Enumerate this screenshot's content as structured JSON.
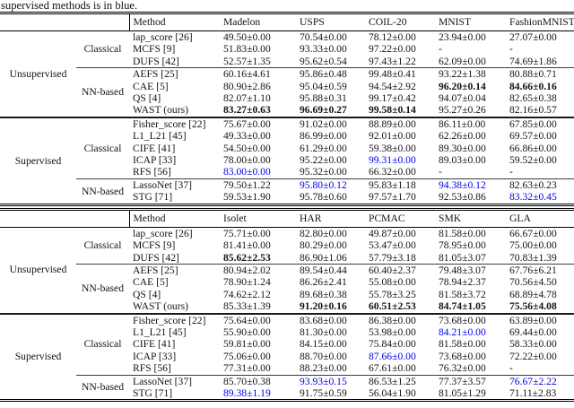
{
  "caption": "supervised methods is in blue.",
  "colors": {
    "highlight_blue": "#0000ee",
    "text": "#131313"
  },
  "tables": [
    {
      "headers": [
        "Method",
        "Madelon",
        "USPS",
        "COIL-20",
        "MNIST",
        "FashionMNIST"
      ],
      "groups": [
        {
          "label": "Unsupervised",
          "subgroups": [
            {
              "label": "Classical",
              "rows": [
                {
                  "method": "lap_score [26]",
                  "values": [
                    "49.50±0.00",
                    "70.54±0.00",
                    "78.12±0.00",
                    "23.94±0.00",
                    "27.07±0.00"
                  ]
                },
                {
                  "method": "MCFS [9]",
                  "values": [
                    "51.83±0.00",
                    "93.33±0.00",
                    "97.22±0.00",
                    "-",
                    "-"
                  ]
                },
                {
                  "method": "DUFS [42]",
                  "values": [
                    "52.57±1.35",
                    "95.62±0.54",
                    "97.43±1.22",
                    "62.09±0.00",
                    "74.69±1.86"
                  ]
                }
              ]
            },
            {
              "label": "NN-based",
              "rows": [
                {
                  "method": "AEFS [25]",
                  "values": [
                    "60.16±4.61",
                    "95.86±0.48",
                    "99.48±0.41",
                    "93.22±1.38",
                    "80.88±0.71"
                  ]
                },
                {
                  "method": "CAE [5]",
                  "values": [
                    "80.90±2.86",
                    "95.04±0.59",
                    "94.54±2.92",
                    {
                      "t": "96.20±0.14",
                      "hl": "bold"
                    },
                    {
                      "t": "84.66±0.16",
                      "hl": "bold"
                    }
                  ]
                },
                {
                  "method": "QS [4]",
                  "values": [
                    "82.07±1.10",
                    "95.88±0.31",
                    "99.17±0.42",
                    "94.07±0.04",
                    "82.65±0.38"
                  ]
                },
                {
                  "method": "WAST (ours)",
                  "values": [
                    {
                      "t": "83.27±0.63",
                      "hl": "bold"
                    },
                    {
                      "t": "96.69±0.27",
                      "hl": "bold"
                    },
                    {
                      "t": "99.58±0.14",
                      "hl": "bold"
                    },
                    "95.27±0.26",
                    "82.16±0.57"
                  ]
                }
              ]
            }
          ]
        },
        {
          "label": "Supervised",
          "subgroups": [
            {
              "label": "Classical",
              "rows": [
                {
                  "method": "Fisher_score [22]",
                  "values": [
                    "75.67±0.00",
                    "91.02±0.00",
                    "88.89±0.00",
                    "86.11±0.00",
                    "67.85±0.00"
                  ]
                },
                {
                  "method": "L1_L21 [45]",
                  "values": [
                    "49.33±0.00",
                    "86.99±0.00",
                    "92.01±0.00",
                    "62.26±0.00",
                    "69.57±0.00"
                  ]
                },
                {
                  "method": "CIFE [41]",
                  "values": [
                    "54.50±0.00",
                    "61.29±0.00",
                    "59.38±0.00",
                    "89.30±0.00",
                    "66.86±0.00"
                  ]
                },
                {
                  "method": "ICAP [33]",
                  "values": [
                    "78.00±0.00",
                    "95.22±0.00",
                    {
                      "t": "99.31±0.00",
                      "hl": "blue"
                    },
                    "89.03±0.00",
                    "59.52±0.00"
                  ]
                },
                {
                  "method": "RFS [56]",
                  "values": [
                    {
                      "t": "83.00±0.00",
                      "hl": "blue"
                    },
                    "95.32±0.00",
                    "66.32±0.00",
                    "-",
                    "-"
                  ]
                }
              ]
            },
            {
              "label": "NN-based",
              "rows": [
                {
                  "method": "LassoNet [37]",
                  "values": [
                    "79.50±1.22",
                    {
                      "t": "95.80±0.12",
                      "hl": "blue"
                    },
                    "95.83±1.18",
                    {
                      "t": "94.38±0.12",
                      "hl": "blue"
                    },
                    "82.63±0.23"
                  ]
                },
                {
                  "method": "STG [71]",
                  "values": [
                    "59.53±1.90",
                    "95.78±0.60",
                    "97.57±1.70",
                    "92.53±0.86",
                    {
                      "t": "83.32±0.45",
                      "hl": "blue"
                    }
                  ]
                }
              ]
            }
          ]
        }
      ]
    },
    {
      "headers": [
        "Method",
        "Isolet",
        "HAR",
        "PCMAC",
        "SMK",
        "GLA"
      ],
      "groups": [
        {
          "label": "Unsupervised",
          "subgroups": [
            {
              "label": "Classical",
              "rows": [
                {
                  "method": "lap_score [26]",
                  "values": [
                    "75.71±0.00",
                    "82.80±0.00",
                    "49.87±0.00",
                    "81.58±0.00",
                    "66.67±0.00"
                  ]
                },
                {
                  "method": "MCFS [9]",
                  "values": [
                    "81.41±0.00",
                    "80.29±0.00",
                    "53.47±0.00",
                    "78.95±0.00",
                    "75.00±0.00"
                  ]
                },
                {
                  "method": "DUFS [42]",
                  "values": [
                    {
                      "t": "85.62±2.53",
                      "hl": "bold"
                    },
                    "86.90±1.06",
                    "57.79±3.18",
                    "81.05±3.07",
                    "70.83±1.39"
                  ]
                }
              ]
            },
            {
              "label": "NN-based",
              "rows": [
                {
                  "method": "AEFS [25]",
                  "values": [
                    "80.94±2.02",
                    "89.54±0.44",
                    "60.40±2.37",
                    "79.48±3.07",
                    "67.76±6.21"
                  ]
                },
                {
                  "method": "CAE [5]",
                  "values": [
                    "78.90±1.24",
                    "86.26±2.41",
                    "55.08±0.00",
                    "78.94±2.37",
                    "70.56±4.50"
                  ]
                },
                {
                  "method": "QS [4]",
                  "values": [
                    "74.62±2.12",
                    "89.68±0.38",
                    "55.78±3.25",
                    "81.58±3.72",
                    "68.89±4.78"
                  ]
                },
                {
                  "method": "WAST (ours)",
                  "values": [
                    "85.33±1.39",
                    {
                      "t": "91.20±0.16",
                      "hl": "bold"
                    },
                    {
                      "t": "60.51±2.53",
                      "hl": "bold"
                    },
                    {
                      "t": "84.74±1.05",
                      "hl": "bold"
                    },
                    {
                      "t": "75.56±4.08",
                      "hl": "bold"
                    }
                  ]
                }
              ]
            }
          ]
        },
        {
          "label": "Supervised",
          "subgroups": [
            {
              "label": "Classical",
              "rows": [
                {
                  "method": "Fisher_score [22]",
                  "values": [
                    "75.64±0.00",
                    "83.68±0.00",
                    "86.38±0.00",
                    "73.68±0.00",
                    "63.89±0.00"
                  ]
                },
                {
                  "method": "L1_L21 [45]",
                  "values": [
                    "55.90±0.00",
                    "81.30±0.00",
                    "53.98±0.00",
                    {
                      "t": "84.21±0.00",
                      "hl": "blue"
                    },
                    "69.44±0.00"
                  ]
                },
                {
                  "method": "CIFE [41]",
                  "values": [
                    "59.81±0.00",
                    "84.15±0.00",
                    "75.84±0.00",
                    "81.58±0.00",
                    "58.33±0.00"
                  ]
                },
                {
                  "method": "ICAP [33]",
                  "values": [
                    "75.06±0.00",
                    "88.70±0.00",
                    {
                      "t": "87.66±0.00",
                      "hl": "blue"
                    },
                    "73.68±0.00",
                    "72.22±0.00"
                  ]
                },
                {
                  "method": "RFS [56]",
                  "values": [
                    "77.31±0.00",
                    "88.23±0.00",
                    "67.61±0.00",
                    "76.32±0.00",
                    "-"
                  ]
                }
              ]
            },
            {
              "label": "NN-based",
              "rows": [
                {
                  "method": "LassoNet [37]",
                  "values": [
                    "85.70±0.38",
                    {
                      "t": "93.93±0.15",
                      "hl": "blue"
                    },
                    "86.53±1.25",
                    "77.37±3.57",
                    {
                      "t": "76.67±2.22",
                      "hl": "blue"
                    }
                  ]
                },
                {
                  "method": "STG [71]",
                  "values": [
                    {
                      "t": "89.38±1.19",
                      "hl": "blue"
                    },
                    "91.75±0.59",
                    "56.04±1.90",
                    "81.05±1.29",
                    "71.11±2.83"
                  ]
                }
              ]
            }
          ]
        }
      ]
    }
  ]
}
